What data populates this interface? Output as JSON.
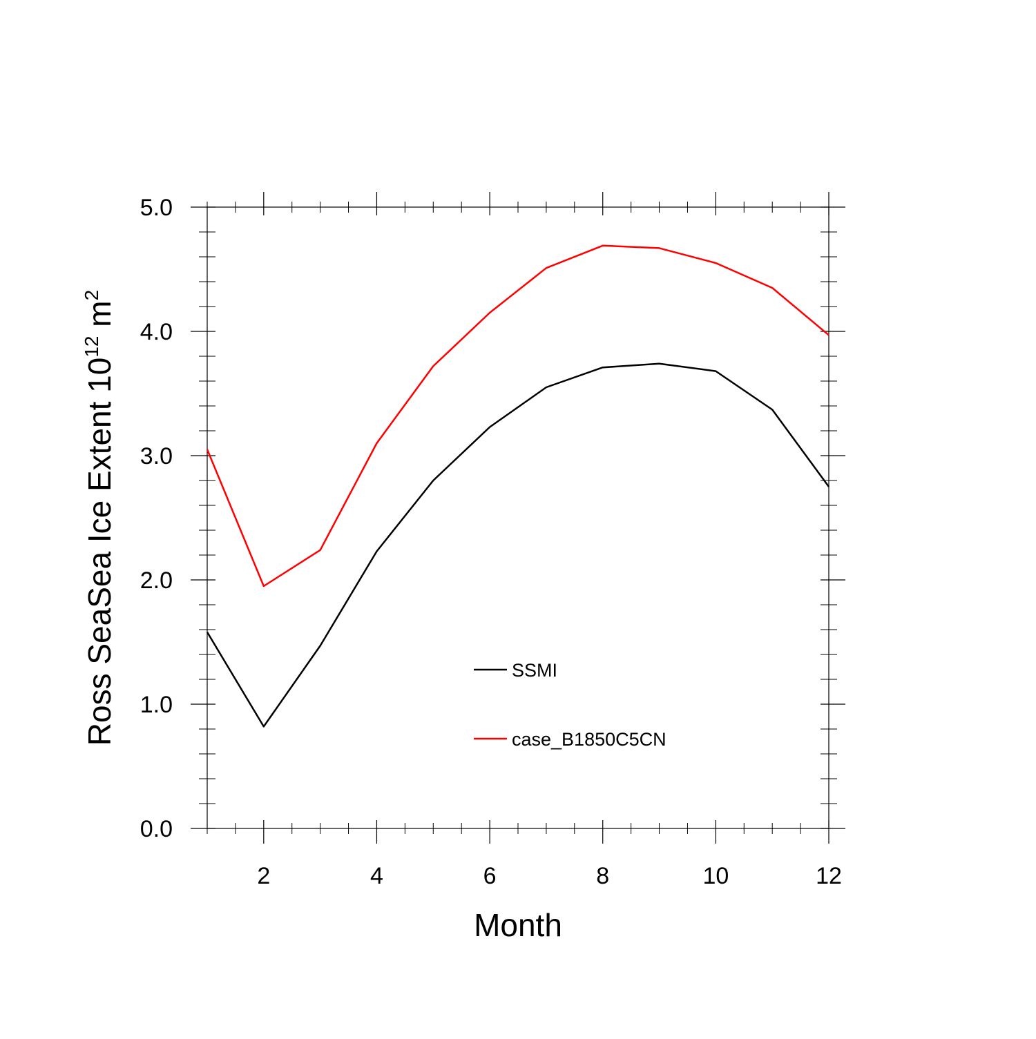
{
  "chart_data": {
    "type": "line",
    "title": "",
    "xlabel": "Month",
    "ylabel": {
      "main": "Ross SeaSea Ice Extent 10",
      "exponent": "12",
      "unit": " m",
      "unit_exponent": "2"
    },
    "xlim": [
      1,
      12
    ],
    "ylim": [
      0.0,
      5.0
    ],
    "x_ticks": [
      2,
      4,
      6,
      8,
      10,
      12
    ],
    "x_tick_labels": [
      "2",
      "4",
      "6",
      "8",
      "10",
      "12"
    ],
    "y_ticks": [
      0.0,
      1.0,
      2.0,
      3.0,
      4.0,
      5.0
    ],
    "y_tick_labels": [
      "0.0",
      "1.0",
      "2.0",
      "3.0",
      "4.0",
      "5.0"
    ],
    "x": [
      1,
      2,
      3,
      4,
      5,
      6,
      7,
      8,
      9,
      10,
      11,
      12
    ],
    "series": [
      {
        "name": "SSMI",
        "color": "#000000",
        "values": [
          1.58,
          0.82,
          1.47,
          2.23,
          2.8,
          3.23,
          3.55,
          3.71,
          3.74,
          3.68,
          3.37,
          2.75
        ]
      },
      {
        "name": "case_B1850C5CN",
        "color": "#ff0000",
        "values": [
          3.05,
          1.95,
          2.24,
          3.1,
          3.72,
          4.15,
          4.51,
          4.69,
          4.67,
          4.55,
          4.35,
          3.97
        ]
      }
    ],
    "legend_position": "center-lower-middle",
    "grid": false
  }
}
